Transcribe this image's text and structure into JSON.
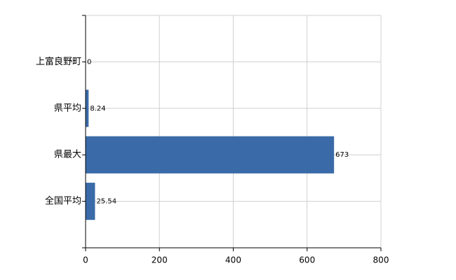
{
  "chart_data": {
    "type": "bar",
    "orientation": "horizontal",
    "categories": [
      "上富良野町",
      "県平均",
      "県最大",
      "全国平均"
    ],
    "values": [
      0,
      8.24,
      673,
      25.54
    ],
    "color": "#3a6ba8",
    "xlim": [
      0,
      800
    ],
    "xticks": [
      0,
      200,
      400,
      600,
      800
    ],
    "grid": true
  }
}
